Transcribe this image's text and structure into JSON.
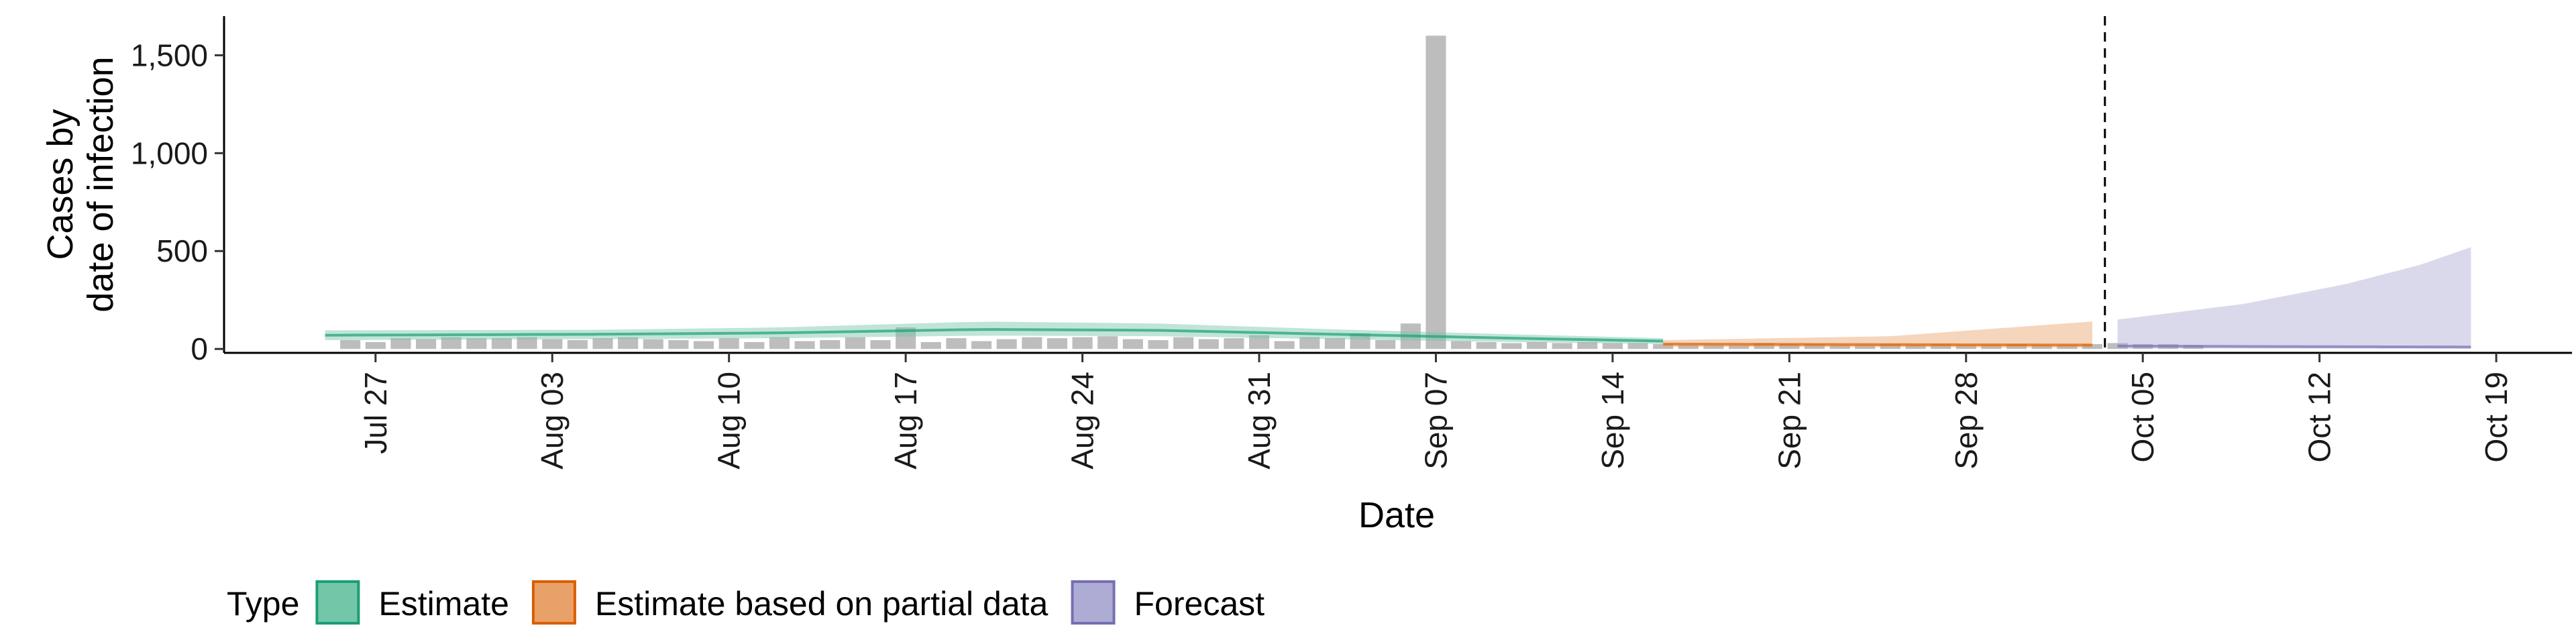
{
  "chart_data": {
    "type": "area",
    "xlabel": "Date",
    "ylabel": "Cases by\ndate of infection",
    "ylim": [
      -20,
      1700
    ],
    "y_ticks": [
      0,
      500,
      1000,
      1500
    ],
    "y_tick_labels": [
      "0",
      "500",
      "1,000",
      "1,500"
    ],
    "x_ticks": [
      "2020-07-27",
      "2020-08-03",
      "2020-08-10",
      "2020-08-17",
      "2020-08-24",
      "2020-08-31",
      "2020-09-07",
      "2020-09-14",
      "2020-09-21",
      "2020-09-28",
      "2020-10-05",
      "2020-10-12",
      "2020-10-19"
    ],
    "x_tick_labels": [
      "Jul 27",
      "Aug 03",
      "Aug 10",
      "Aug 17",
      "Aug 24",
      "Aug 31",
      "Sep 07",
      "Sep 14",
      "Sep 21",
      "Sep 28",
      "Oct 05",
      "Oct 12",
      "Oct 19"
    ],
    "xlim": [
      "2020-07-21",
      "2020-10-22"
    ],
    "forecast_cutoff_date": "2020-10-04",
    "observed_cases": {
      "start_date": "2020-07-26",
      "values": [
        45,
        35,
        55,
        50,
        60,
        55,
        55,
        60,
        50,
        45,
        55,
        60,
        50,
        45,
        40,
        55,
        35,
        60,
        40,
        45,
        60,
        45,
        110,
        35,
        55,
        40,
        50,
        60,
        55,
        60,
        65,
        50,
        45,
        60,
        50,
        55,
        70,
        40,
        60,
        55,
        80,
        45,
        130,
        1600,
        40,
        35,
        30,
        35,
        30,
        35,
        30,
        30,
        25,
        20,
        20,
        20,
        30,
        25,
        25,
        20,
        20,
        25,
        20,
        25,
        20,
        20,
        25,
        20,
        20,
        25,
        30,
        25,
        25,
        20
      ]
    },
    "series": [
      {
        "name": "Estimate",
        "start_date": "2020-07-25",
        "end_date": "2020-09-16",
        "color": "#1b9e77",
        "fill": "#74c6a8",
        "median_points": [
          [
            "2020-07-25",
            70
          ],
          [
            "2020-08-05",
            75
          ],
          [
            "2020-08-12",
            82
          ],
          [
            "2020-08-20",
            100
          ],
          [
            "2020-08-27",
            95
          ],
          [
            "2020-09-03",
            75
          ],
          [
            "2020-09-10",
            55
          ],
          [
            "2020-09-16",
            40
          ]
        ],
        "lower_points": [
          [
            "2020-07-25",
            45
          ],
          [
            "2020-08-05",
            50
          ],
          [
            "2020-08-12",
            55
          ],
          [
            "2020-08-20",
            68
          ],
          [
            "2020-08-27",
            65
          ],
          [
            "2020-09-03",
            50
          ],
          [
            "2020-09-10",
            35
          ],
          [
            "2020-09-16",
            25
          ]
        ],
        "upper_points": [
          [
            "2020-07-25",
            95
          ],
          [
            "2020-08-05",
            98
          ],
          [
            "2020-08-12",
            110
          ],
          [
            "2020-08-20",
            140
          ],
          [
            "2020-08-27",
            130
          ],
          [
            "2020-09-03",
            100
          ],
          [
            "2020-09-10",
            75
          ],
          [
            "2020-09-16",
            55
          ]
        ]
      },
      {
        "name": "Estimate based on partial data",
        "start_date": "2020-09-16",
        "end_date": "2020-10-03",
        "color": "#d95f02",
        "fill": "#e9a16a",
        "median_points": [
          [
            "2020-09-16",
            25
          ],
          [
            "2020-09-25",
            22
          ],
          [
            "2020-10-03",
            20
          ]
        ],
        "lower_points": [
          [
            "2020-09-16",
            10
          ],
          [
            "2020-09-25",
            8
          ],
          [
            "2020-10-03",
            5
          ]
        ],
        "upper_points": [
          [
            "2020-09-16",
            45
          ],
          [
            "2020-09-25",
            65
          ],
          [
            "2020-10-03",
            140
          ]
        ]
      },
      {
        "name": "Forecast",
        "start_date": "2020-10-04",
        "end_date": "2020-10-18",
        "color": "#7570b3",
        "fill": "#aeabd4",
        "median_points": [
          [
            "2020-10-04",
            15
          ],
          [
            "2020-10-11",
            12
          ],
          [
            "2020-10-18",
            10
          ]
        ],
        "lower_points": [
          [
            "2020-10-04",
            2
          ],
          [
            "2020-10-11",
            2
          ],
          [
            "2020-10-18",
            1
          ]
        ],
        "upper_points": [
          [
            "2020-10-04",
            150
          ],
          [
            "2020-10-09",
            230
          ],
          [
            "2020-10-13",
            330
          ],
          [
            "2020-10-16",
            430
          ],
          [
            "2020-10-18",
            520
          ]
        ]
      }
    ],
    "legend": {
      "title": "Type",
      "position": "bottom",
      "items": [
        "Estimate",
        "Estimate based on partial data",
        "Forecast"
      ]
    }
  }
}
